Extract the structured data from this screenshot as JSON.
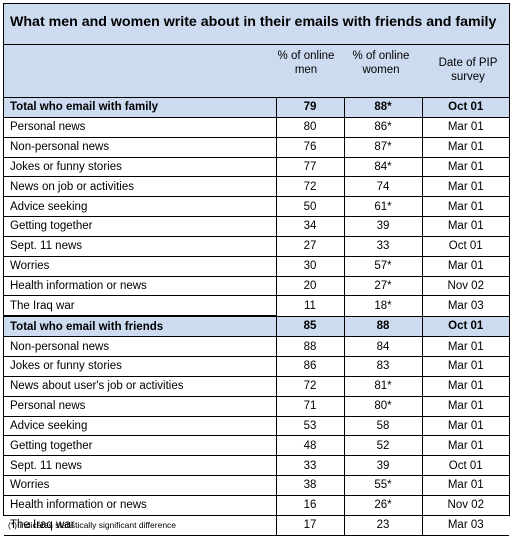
{
  "title": "What men and women write about in their emails with friends and family",
  "columns": {
    "men": "% of online men",
    "women": "% of online women",
    "date": "Date of PIP survey"
  },
  "family": {
    "total": {
      "label": "Total who email with family",
      "men": "79",
      "women": "88*",
      "date": "Oct 01"
    },
    "rows": [
      {
        "label": "Personal news",
        "men": "80",
        "women": "86*",
        "date": "Mar 01"
      },
      {
        "label": "Non-personal news",
        "men": "76",
        "women": "87*",
        "date": "Mar 01"
      },
      {
        "label": "Jokes or funny stories",
        "men": "77",
        "women": "84*",
        "date": "Mar 01"
      },
      {
        "label": "News on job or activities",
        "men": "72",
        "women": "74",
        "date": "Mar 01"
      },
      {
        "label": "Advice seeking",
        "men": "50",
        "women": "61*",
        "date": "Mar 01"
      },
      {
        "label": "Getting together",
        "men": "34",
        "women": "39",
        "date": "Mar 01"
      },
      {
        "label": "Sept. 11 news",
        "men": "27",
        "women": "33",
        "date": "Oct 01"
      },
      {
        "label": "Worries",
        "men": "30",
        "women": "57*",
        "date": "Mar 01"
      },
      {
        "label": "Health information or news",
        "men": "20",
        "women": "27*",
        "date": "Nov 02"
      },
      {
        "label": "The Iraq war",
        "men": "11",
        "women": "18*",
        "date": "Mar 03"
      }
    ]
  },
  "friends": {
    "total": {
      "label": "Total who email with friends",
      "men": "85",
      "women": "88",
      "date": "Oct 01"
    },
    "rows": [
      {
        "label": "Non-personal news",
        "men": "88",
        "women": "84",
        "date": "Mar 01"
      },
      {
        "label": "Jokes or funny stories",
        "men": "86",
        "women": "83",
        "date": "Mar 01"
      },
      {
        "label": "News about user's job or activities",
        "men": "72",
        "women": "81*",
        "date": "Mar 01"
      },
      {
        "label": "Personal news",
        "men": "71",
        "women": "80*",
        "date": "Mar 01"
      },
      {
        "label": "Advice seeking",
        "men": "53",
        "women": "58",
        "date": "Mar 01"
      },
      {
        "label": "Getting together",
        "men": "48",
        "women": "52",
        "date": "Mar 01"
      },
      {
        "label": "Sept. 11 news",
        "men": "33",
        "women": "39",
        "date": "Oct 01"
      },
      {
        "label": "Worries",
        "men": "38",
        "women": "55*",
        "date": "Mar 01"
      },
      {
        "label": "Health information or news",
        "men": "16",
        "women": "26*",
        "date": "Nov 02"
      },
      {
        "label": "The Iraq war",
        "men": "17",
        "women": "23",
        "date": "Mar 03"
      }
    ]
  },
  "footnote": "(*) indicates statistically significant difference",
  "colors": {
    "header_bg": "#ccdbf0",
    "border": "#000000"
  }
}
